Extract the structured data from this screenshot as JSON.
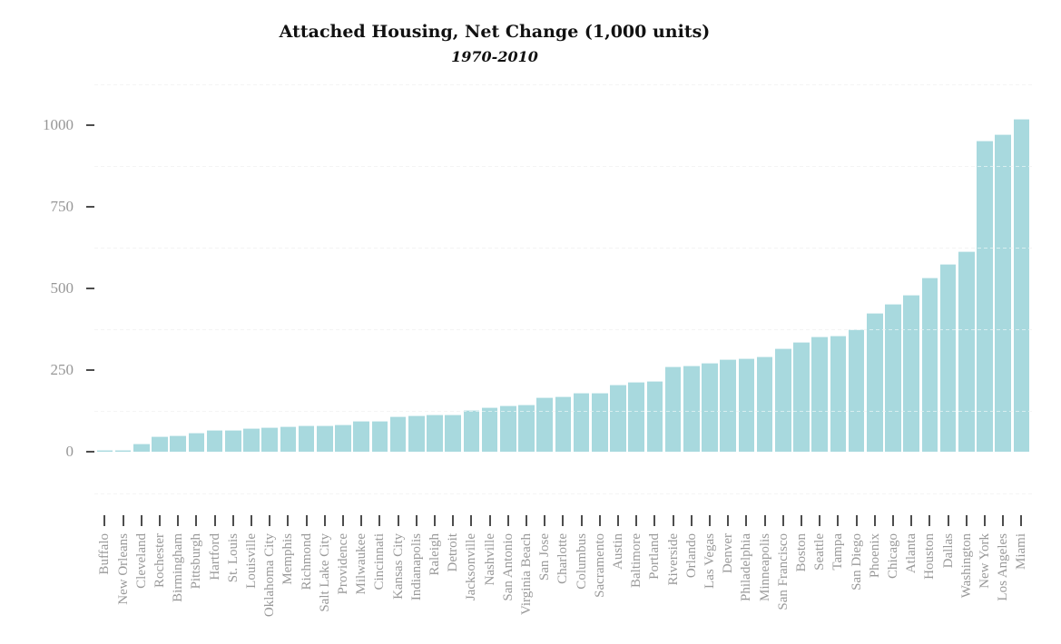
{
  "page": {
    "background": "#ffffff"
  },
  "chart_data": {
    "type": "bar",
    "title": "Attached Housing, Net Change (1,000 units)",
    "subtitle": "1970-2010",
    "xlabel": "",
    "ylabel": "",
    "legend": "none",
    "grid": "horizontal dashed minor gridlines",
    "bar_color": "#a8d9de",
    "axis_label_color": "#999999",
    "tick_color": "#4d4d4d",
    "title_color": "#111111",
    "gridline_color": "#e6e6e6",
    "ylim": [
      -125,
      1125
    ],
    "y_ticks": [
      0,
      250,
      500,
      750,
      1000
    ],
    "y_minor_gridlines": [
      -125,
      125,
      375,
      625,
      875,
      1125
    ],
    "categories": [
      "Buffalo",
      "New Orleans",
      "Cleveland",
      "Rochester",
      "Birmingham",
      "Pittsburgh",
      "Hartford",
      "St. Louis",
      "Louisville",
      "Oklahoma City",
      "Memphis",
      "Richmond",
      "Salt Lake City",
      "Providence",
      "Milwaukee",
      "Cincinnati",
      "Kansas City",
      "Indianapolis",
      "Raleigh",
      "Detroit",
      "Jacksonville",
      "Nashville",
      "San Antonio",
      "Virginia Beach",
      "San Jose",
      "Charlotte",
      "Columbus",
      "Sacramento",
      "Austin",
      "Baltimore",
      "Portland",
      "Riverside",
      "Orlando",
      "Las Vegas",
      "Denver",
      "Philadelphia",
      "Minneapolis",
      "San Francisco",
      "Boston",
      "Seattle",
      "Tampa",
      "San Diego",
      "Phoenix",
      "Chicago",
      "Atlanta",
      "Houston",
      "Dallas",
      "Washington",
      "New York",
      "Los Angeles",
      "Miami"
    ],
    "values": [
      6,
      8,
      26,
      49,
      51,
      59,
      67,
      69,
      72,
      77,
      78,
      81,
      82,
      84,
      95,
      96,
      110,
      113,
      114,
      116,
      128,
      137,
      143,
      145,
      168,
      171,
      180,
      182,
      205,
      215,
      218,
      262,
      264,
      272,
      283,
      286,
      293,
      318,
      336,
      352,
      355,
      376,
      424,
      453,
      480,
      533,
      574,
      614,
      953,
      970,
      1018
    ]
  }
}
